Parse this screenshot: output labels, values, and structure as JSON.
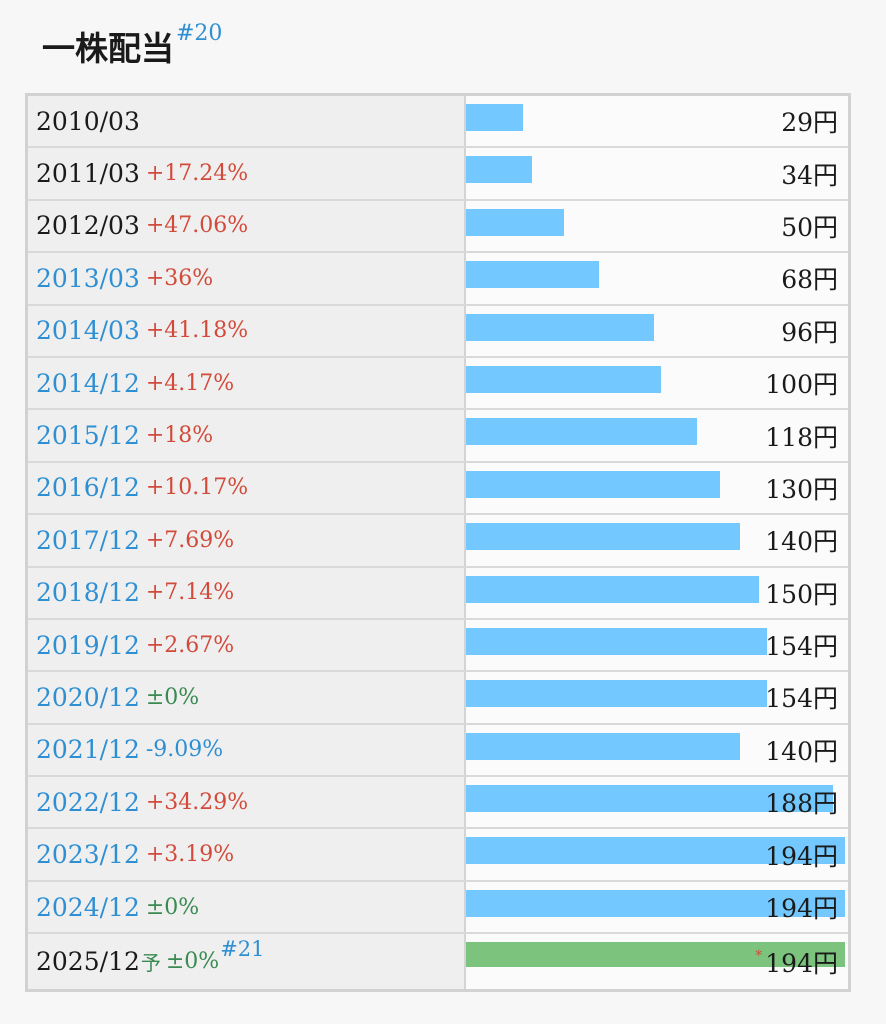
{
  "title": "一株配当",
  "title_ref": "#20",
  "max_value": 194,
  "colors": {
    "bar": "#73c8ff",
    "forecast_bar": "#7cc47e",
    "up": "#d24a3a",
    "down": "#2f8fd3",
    "flat": "#3a8a52"
  },
  "rows": [
    {
      "date": "2010/03",
      "link": false,
      "change": "",
      "dir": "",
      "value": 29,
      "value_label": "29円"
    },
    {
      "date": "2011/03",
      "link": false,
      "change": "+17.24%",
      "dir": "up",
      "value": 34,
      "value_label": "34円"
    },
    {
      "date": "2012/03",
      "link": false,
      "change": "+47.06%",
      "dir": "up",
      "value": 50,
      "value_label": "50円"
    },
    {
      "date": "2013/03",
      "link": true,
      "change": "+36%",
      "dir": "up",
      "value": 68,
      "value_label": "68円"
    },
    {
      "date": "2014/03",
      "link": true,
      "change": "+41.18%",
      "dir": "up",
      "value": 96,
      "value_label": "96円"
    },
    {
      "date": "2014/12",
      "link": true,
      "change": "+4.17%",
      "dir": "up",
      "value": 100,
      "value_label": "100円"
    },
    {
      "date": "2015/12",
      "link": true,
      "change": "+18%",
      "dir": "up",
      "value": 118,
      "value_label": "118円"
    },
    {
      "date": "2016/12",
      "link": true,
      "change": "+10.17%",
      "dir": "up",
      "value": 130,
      "value_label": "130円"
    },
    {
      "date": "2017/12",
      "link": true,
      "change": "+7.69%",
      "dir": "up",
      "value": 140,
      "value_label": "140円"
    },
    {
      "date": "2018/12",
      "link": true,
      "change": "+7.14%",
      "dir": "up",
      "value": 150,
      "value_label": "150円"
    },
    {
      "date": "2019/12",
      "link": true,
      "change": "+2.67%",
      "dir": "up",
      "value": 154,
      "value_label": "154円"
    },
    {
      "date": "2020/12",
      "link": true,
      "change": "±0%",
      "dir": "flat",
      "value": 154,
      "value_label": "154円"
    },
    {
      "date": "2021/12",
      "link": true,
      "change": "-9.09%",
      "dir": "down",
      "value": 140,
      "value_label": "140円"
    },
    {
      "date": "2022/12",
      "link": true,
      "change": "+34.29%",
      "dir": "up",
      "value": 188,
      "value_label": "188円"
    },
    {
      "date": "2023/12",
      "link": true,
      "change": "+3.19%",
      "dir": "up",
      "value": 194,
      "value_label": "194円"
    },
    {
      "date": "2024/12",
      "link": true,
      "change": "±0%",
      "dir": "flat",
      "value": 194,
      "value_label": "194円"
    }
  ],
  "forecast": {
    "date": "2025/12",
    "mark": "予",
    "change": "±0%",
    "ref": "#21",
    "value": 194,
    "star": "*",
    "value_label": "194円"
  }
}
